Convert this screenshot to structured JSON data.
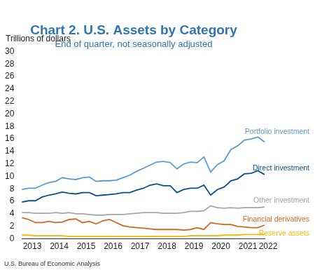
{
  "chart_data": {
    "type": "line",
    "title": "Chart 2. U.S. Assets by Category",
    "subtitle": "End of quarter, not seasonally adjusted",
    "y_label": "Trillions of dollars",
    "source": "U.S. Bureau of Economic Analysis",
    "categories": [
      null,
      "2013",
      null,
      null,
      null,
      "2014",
      null,
      null,
      null,
      "2015",
      null,
      null,
      null,
      "2016",
      null,
      null,
      null,
      "2017",
      null,
      null,
      null,
      "2018",
      null,
      null,
      null,
      "2019",
      null,
      null,
      null,
      "2020",
      null,
      null,
      null,
      "2021",
      null,
      null,
      "2022"
    ],
    "series": [
      {
        "name": "Portfolio investment",
        "color": "#5b9bd5",
        "values": [
          7.9,
          8.1,
          8.1,
          8.6,
          9.0,
          9.2,
          9.8,
          9.6,
          9.5,
          9.8,
          9.9,
          9.2,
          9.3,
          9.3,
          9.4,
          9.8,
          10.2,
          10.8,
          11.3,
          11.8,
          12.3,
          12.4,
          12.2,
          11.2,
          12.0,
          12.3,
          12.2,
          13.1,
          10.7,
          11.9,
          12.5,
          14.3,
          14.9,
          15.8,
          16.0,
          16.3,
          15.5
        ]
      },
      {
        "name": "Direct investment",
        "color": "#0b4f8a",
        "values": [
          5.9,
          6.1,
          6.1,
          6.7,
          7.0,
          7.2,
          7.5,
          7.3,
          7.2,
          7.4,
          7.4,
          6.9,
          7.0,
          7.1,
          7.2,
          7.4,
          7.4,
          7.8,
          8.1,
          8.6,
          8.8,
          8.5,
          8.5,
          7.4,
          7.9,
          8.1,
          8.1,
          8.6,
          7.0,
          7.9,
          8.3,
          9.3,
          9.6,
          10.4,
          10.5,
          10.9,
          10.3
        ]
      },
      {
        "name": "Other investment",
        "color": "#a6a6a6",
        "values": [
          4.2,
          4.2,
          4.1,
          4.1,
          4.1,
          4.2,
          4.1,
          4.2,
          4.0,
          4.0,
          3.9,
          3.8,
          3.8,
          3.9,
          3.9,
          3.9,
          4.0,
          4.1,
          4.2,
          4.2,
          4.2,
          4.1,
          4.1,
          4.1,
          4.2,
          4.4,
          4.4,
          4.5,
          5.3,
          5.0,
          4.9,
          5.0,
          4.9,
          5.0,
          5.0,
          5.0,
          5.1
        ]
      },
      {
        "name": "Financial derivatives",
        "color": "#d4661f",
        "values": [
          3.4,
          3.1,
          2.6,
          2.6,
          2.8,
          2.6,
          2.7,
          3.1,
          3.2,
          2.6,
          2.8,
          2.4,
          2.9,
          3.1,
          2.6,
          2.1,
          1.9,
          1.8,
          1.7,
          1.6,
          1.5,
          1.5,
          1.5,
          1.5,
          1.4,
          1.5,
          1.8,
          1.5,
          2.6,
          2.4,
          2.3,
          2.3,
          2.0,
          1.9,
          1.8,
          1.8,
          2.2
        ]
      },
      {
        "name": "Reserve assets",
        "color": "#f2b800",
        "values": [
          0.6,
          0.6,
          0.5,
          0.5,
          0.5,
          0.5,
          0.5,
          0.4,
          0.4,
          0.4,
          0.4,
          0.4,
          0.4,
          0.4,
          0.4,
          0.4,
          0.4,
          0.4,
          0.4,
          0.4,
          0.4,
          0.4,
          0.4,
          0.4,
          0.4,
          0.5,
          0.5,
          0.5,
          0.5,
          0.5,
          0.6,
          0.6,
          0.6,
          0.7,
          0.7,
          0.7,
          0.7
        ]
      }
    ],
    "ylim": [
      0,
      30
    ],
    "yticks": [
      0,
      2,
      4,
      6,
      8,
      10,
      12,
      14,
      16,
      18,
      20,
      22,
      24,
      26,
      28,
      30
    ],
    "grid": false
  }
}
